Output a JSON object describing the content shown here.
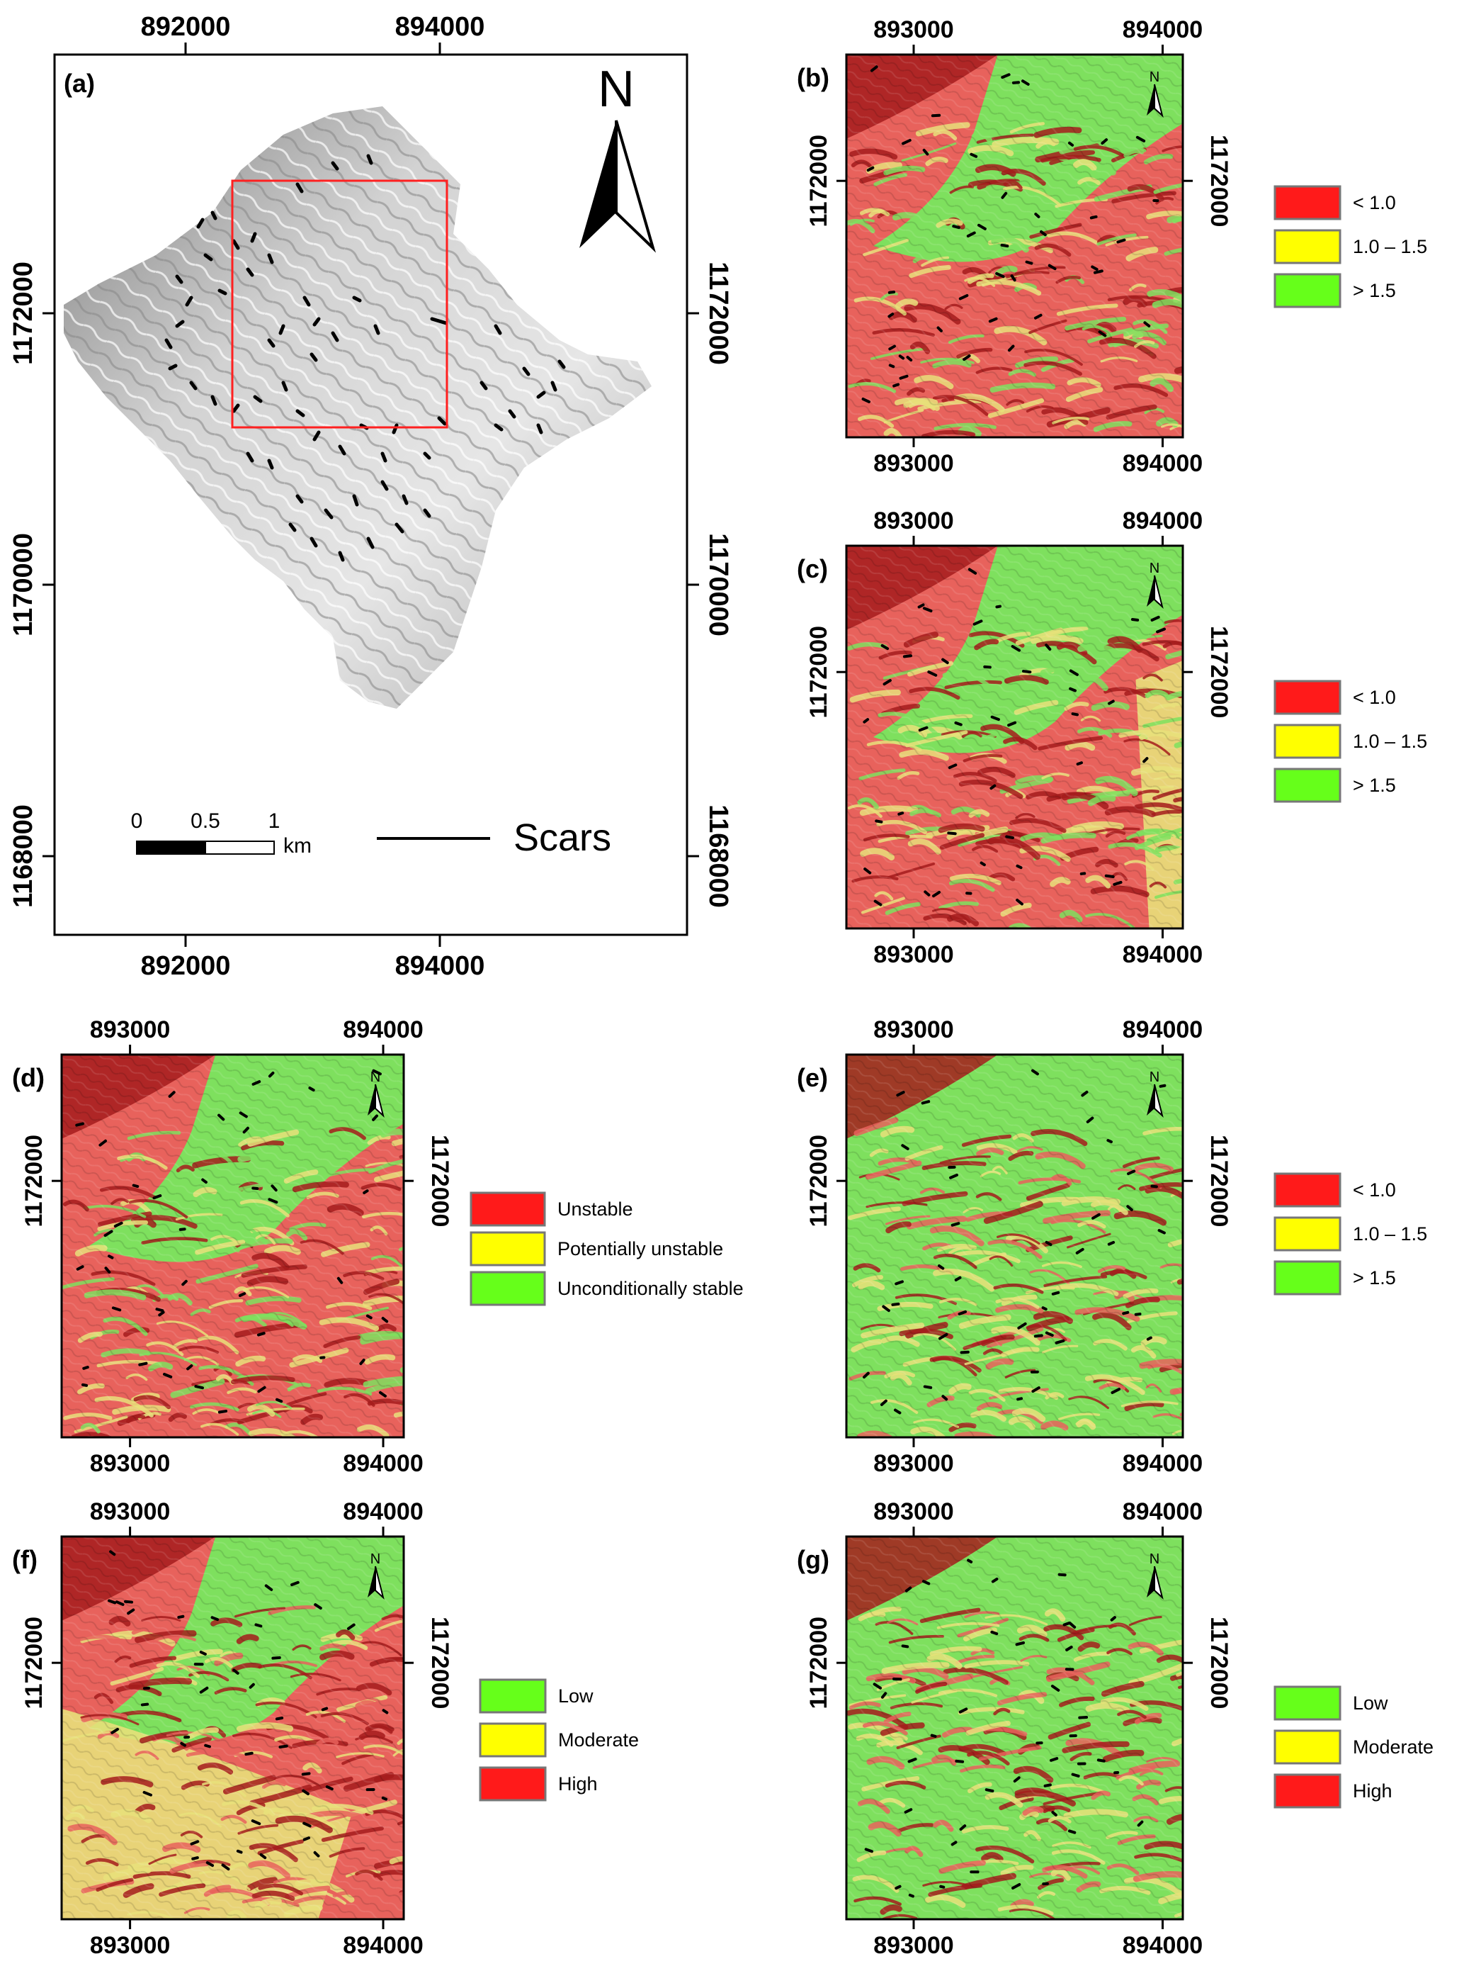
{
  "panel_a": {
    "label": "(a)",
    "top_ticks": [
      "892000",
      "894000"
    ],
    "bottom_ticks": [
      "892000",
      "894000"
    ],
    "y_ticks": [
      "1172000",
      "1170000",
      "1168000"
    ],
    "north": "N",
    "scale": {
      "t0": "0",
      "t1": "0.5",
      "t2": "1",
      "unit": "km"
    },
    "scars_label": "Scars"
  },
  "panels": [
    {
      "label": "(b)",
      "legend": [
        "< 1.0",
        "1.0 – 1.5",
        "> 1.5"
      ],
      "legend_colors": [
        "#ff1a1a",
        "#ffff00",
        "#66ff1a"
      ],
      "north": "N"
    },
    {
      "label": "(c)",
      "legend": [
        "< 1.0",
        "1.0 – 1.5",
        "> 1.5"
      ],
      "legend_colors": [
        "#ff1a1a",
        "#ffff00",
        "#66ff1a"
      ],
      "north": "N"
    },
    {
      "label": "(d)",
      "legend": [
        "Unstable",
        "Potentially unstable",
        "Unconditionally stable"
      ],
      "legend_colors": [
        "#ff1a1a",
        "#ffff00",
        "#66ff1a"
      ],
      "north": "N"
    },
    {
      "label": "(e)",
      "legend": [
        "< 1.0",
        "1.0 – 1.5",
        "> 1.5"
      ],
      "legend_colors": [
        "#ff1a1a",
        "#ffff00",
        "#66ff1a"
      ],
      "north": "N"
    },
    {
      "label": "(f)",
      "legend": [
        "Low",
        "Moderate",
        "High"
      ],
      "legend_colors": [
        "#66ff1a",
        "#ffff00",
        "#ff1a1a"
      ],
      "north": "N"
    },
    {
      "label": "(g)",
      "legend": [
        "Low",
        "Moderate",
        "High"
      ],
      "legend_colors": [
        "#66ff1a",
        "#ffff00",
        "#ff1a1a"
      ],
      "north": "N"
    }
  ],
  "small_ticks": {
    "x": [
      "893000",
      "894000"
    ],
    "y": "1172000"
  },
  "colors": {
    "map_red": "#e8625c",
    "map_darkred": "#a51c1c",
    "map_green": "#7ee05e",
    "map_yellow": "#e8e07a",
    "extent_box": "#ff2020"
  }
}
